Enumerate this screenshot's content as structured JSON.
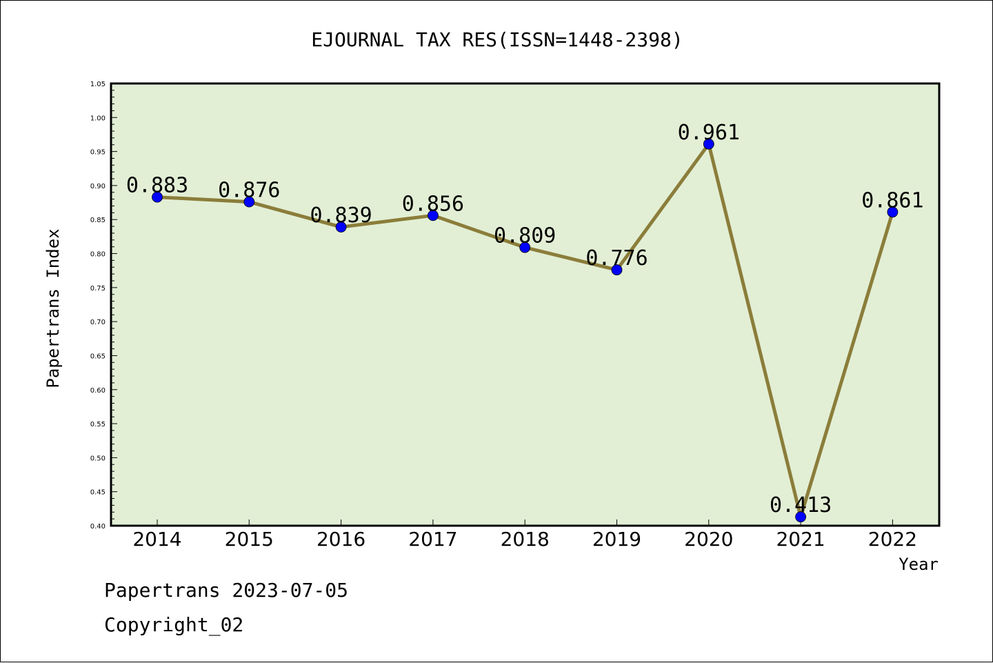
{
  "chart_data": {
    "type": "line",
    "title": "EJOURNAL TAX RES(ISSN=1448-2398)",
    "xlabel": "Year",
    "ylabel": "Papertrans Index",
    "categories": [
      "2014",
      "2015",
      "2016",
      "2017",
      "2018",
      "2019",
      "2020",
      "2021",
      "2022"
    ],
    "series": [
      {
        "values": [
          0.883,
          0.876,
          0.839,
          0.856,
          0.809,
          0.776,
          0.961,
          0.413,
          0.861
        ],
        "data_labels": [
          "0.883",
          "0.876",
          "0.839",
          "0.856",
          "0.809",
          "0.776",
          "0.961",
          "0.413",
          "0.861"
        ],
        "line_color": "#8b7d3a",
        "marker_color": "#0000ff"
      }
    ],
    "ylim": [
      0.4,
      1.05
    ],
    "yticks": [
      "0.40",
      "0.45",
      "0.50",
      "0.55",
      "0.60",
      "0.65",
      "0.70",
      "0.75",
      "0.80",
      "0.85",
      "0.90",
      "0.95",
      "1.00",
      "1.05"
    ],
    "grid": false,
    "plot_background": "#e2efd5"
  },
  "footer": {
    "line1": "Papertrans 2023-07-05",
    "line2": "Copyright_02"
  }
}
